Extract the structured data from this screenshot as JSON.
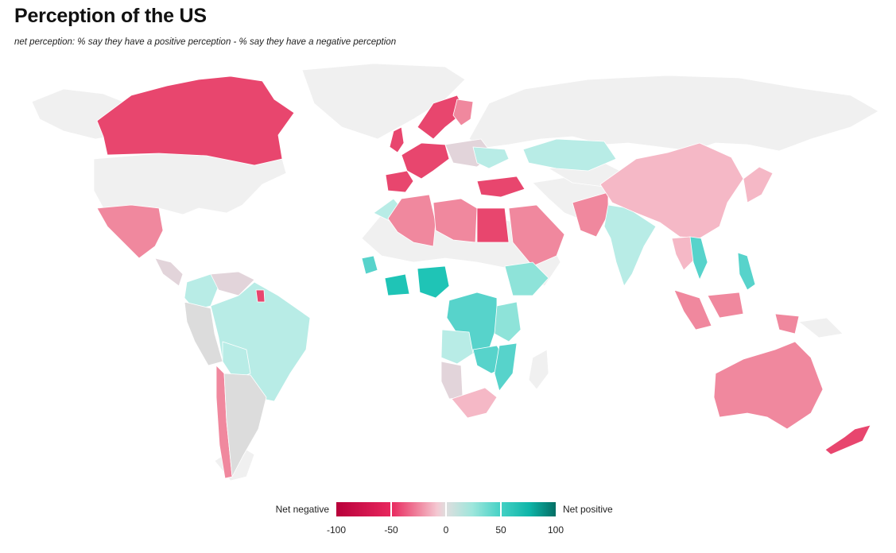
{
  "header": {
    "title": "Perception of the US",
    "subtitle": "net perception: % say they have a positive perception - % say they have a negative perception"
  },
  "legend": {
    "negative_label": "Net negative",
    "positive_label": "Net positive",
    "ticks": [
      "-100",
      "-50",
      "0",
      "50",
      "100"
    ]
  },
  "colors": {
    "no_data": "#f0f0f0",
    "neg_strong": "#e8466e",
    "neg_mid": "#f0889e",
    "neg_light": "#f5b8c6",
    "neutral": "#dcdcdc",
    "neutral_pink": "#e2d4da",
    "pos_light": "#b8ece6",
    "pos_mid": "#8ee3d9",
    "pos_strong": "#57d3cb",
    "pos_deep": "#1fc4b6"
  },
  "map_data": {
    "regions": [
      {
        "name": "Canada",
        "color": "neg_strong"
      },
      {
        "name": "Mexico",
        "color": "neg_mid"
      },
      {
        "name": "Colombia",
        "color": "pos_light"
      },
      {
        "name": "Venezuela",
        "color": "neutral_pink"
      },
      {
        "name": "Brazil",
        "color": "pos_light"
      },
      {
        "name": "Peru",
        "color": "neutral"
      },
      {
        "name": "Chile",
        "color": "neg_mid"
      },
      {
        "name": "Argentina",
        "color": "neutral"
      },
      {
        "name": "United Kingdom",
        "color": "neg_strong"
      },
      {
        "name": "France",
        "color": "neg_strong"
      },
      {
        "name": "Spain",
        "color": "neg_strong"
      },
      {
        "name": "Germany",
        "color": "neg_strong"
      },
      {
        "name": "Sweden",
        "color": "neg_strong"
      },
      {
        "name": "Finland",
        "color": "neg_mid"
      },
      {
        "name": "Turkey",
        "color": "neg_strong"
      },
      {
        "name": "Egypt",
        "color": "neg_strong"
      },
      {
        "name": "Algeria",
        "color": "neg_mid"
      },
      {
        "name": "Libya",
        "color": "neg_mid"
      },
      {
        "name": "Saudi Arabia",
        "color": "neg_mid"
      },
      {
        "name": "Pakistan",
        "color": "neg_mid"
      },
      {
        "name": "Kazakhstan",
        "color": "pos_light"
      },
      {
        "name": "India",
        "color": "pos_light"
      },
      {
        "name": "China",
        "color": "neg_light"
      },
      {
        "name": "Japan",
        "color": "neg_light"
      },
      {
        "name": "Vietnam",
        "color": "pos_strong"
      },
      {
        "name": "Philippines",
        "color": "pos_strong"
      },
      {
        "name": "Indonesia",
        "color": "neg_mid"
      },
      {
        "name": "Nigeria",
        "color": "pos_deep"
      },
      {
        "name": "Ghana",
        "color": "pos_deep"
      },
      {
        "name": "Ethiopia",
        "color": "pos_mid"
      },
      {
        "name": "DR Congo",
        "color": "pos_strong"
      },
      {
        "name": "Tanzania",
        "color": "pos_mid"
      },
      {
        "name": "Angola",
        "color": "pos_light"
      },
      {
        "name": "Namibia",
        "color": "neutral_pink"
      },
      {
        "name": "South Africa",
        "color": "neg_light"
      },
      {
        "name": "Mozambique",
        "color": "pos_strong"
      },
      {
        "name": "Australia",
        "color": "neg_mid"
      },
      {
        "name": "New Zealand",
        "color": "neg_strong"
      }
    ]
  }
}
